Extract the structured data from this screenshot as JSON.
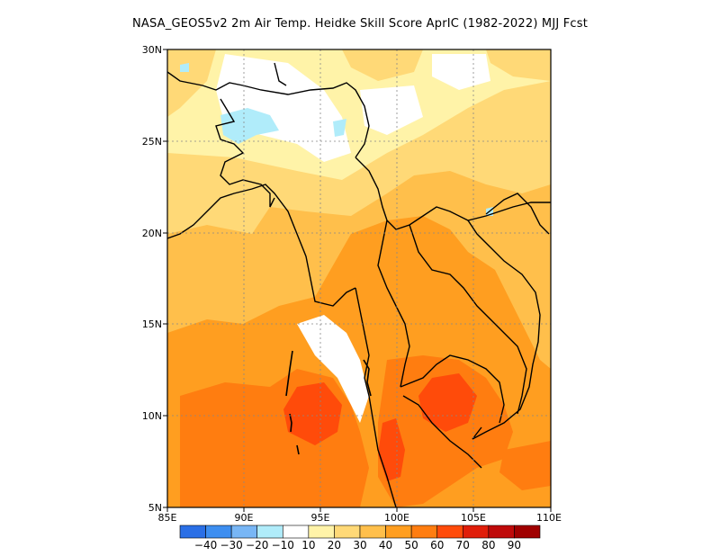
{
  "title": "NASA_GEOS5v2  2m Air Temp. Heidke Skill Score AprIC (1982-2022) MJJ Fcst",
  "map": {
    "lon_ticks": [
      "85E",
      "90E",
      "95E",
      "100E",
      "105E",
      "110E"
    ],
    "lat_ticks": [
      "5N",
      "10N",
      "15N",
      "20N",
      "25N",
      "30N"
    ],
    "lon_range": [
      85,
      110
    ],
    "lat_range": [
      5,
      30
    ]
  },
  "colorbar": {
    "labels": [
      "-40",
      "-30",
      "-20",
      "-10",
      "10",
      "20",
      "30",
      "40",
      "50",
      "60",
      "70",
      "80",
      "90"
    ],
    "colors": [
      "#2a6fe6",
      "#3d8ef0",
      "#78b6f5",
      "#b0ecfa",
      "#ffffff",
      "#fff3a8",
      "#ffd977",
      "#ffbf4b",
      "#ff9e20",
      "#ff7d10",
      "#ff4b0a",
      "#e01e0a",
      "#bf0a0a",
      "#a00000"
    ]
  }
}
